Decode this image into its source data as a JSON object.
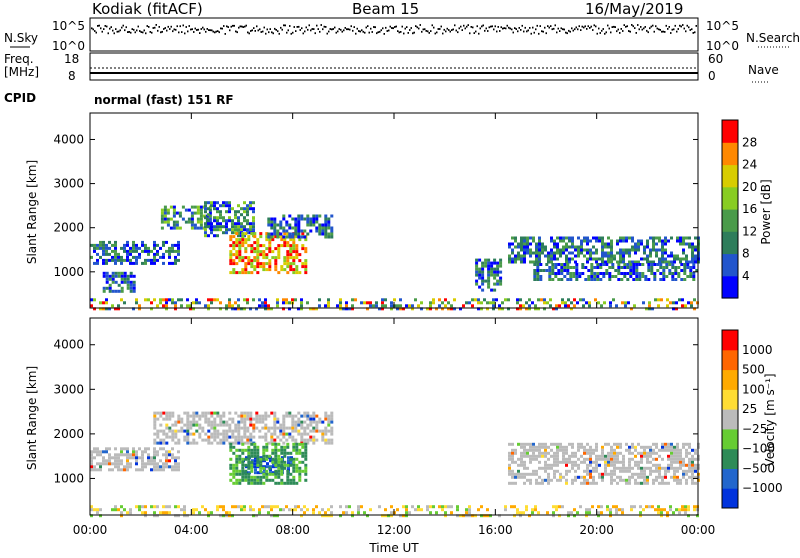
{
  "header": {
    "title": "Kodiak (fitACF)",
    "beam": "Beam 15",
    "date": "16/May/2019"
  },
  "status_panels": {
    "nsky_label": "N.Sky",
    "nsearch_label": "N.Search",
    "noise_ticks_left": [
      "10^5",
      "10^0"
    ],
    "noise_ticks_right": [
      "10^5",
      "10^0"
    ],
    "freq_label_1": "Freq.",
    "freq_label_2": "[MHz]",
    "freq_ticks": [
      "18",
      "8"
    ],
    "nave_label": "Nave",
    "nave_ticks": [
      "60",
      "0"
    ],
    "cpid_label": "CPID",
    "cpid_text": "normal (fast) 151 RF"
  },
  "chart_data": [
    {
      "type": "heatmap",
      "name": "power",
      "ylabel": "Slant Range [km]",
      "xlabel": "Time UT",
      "x_ticks": [
        "00:00",
        "04:00",
        "08:00",
        "12:00",
        "16:00",
        "20:00",
        "00:00"
      ],
      "y_ticks": [
        "4000",
        "3000",
        "2000",
        "1000"
      ],
      "ylim": [
        180,
        4600
      ],
      "xlim_hours": [
        0,
        24
      ],
      "colorbar_label": "Power [dB]",
      "colorbar_ticks": [
        "28",
        "24",
        "20",
        "16",
        "12",
        "8",
        "4"
      ],
      "colorbar_colors": [
        "#0000ff",
        "#2255cc",
        "#2e7d5b",
        "#4a9b4a",
        "#88cc22",
        "#d8cc00",
        "#ff8800",
        "#ff0000"
      ],
      "echo_regions": [
        {
          "t0": 0.0,
          "t1": 3.5,
          "r0": 1200,
          "r1": 1700,
          "level": "low"
        },
        {
          "t0": 0.5,
          "t1": 1.7,
          "r0": 550,
          "r1": 1000,
          "level": "low"
        },
        {
          "t0": 2.8,
          "t1": 4.8,
          "r0": 2000,
          "r1": 2500,
          "level": "mid"
        },
        {
          "t0": 4.5,
          "t1": 6.5,
          "r0": 1800,
          "r1": 2600,
          "level": "mid"
        },
        {
          "t0": 5.5,
          "t1": 8.5,
          "r0": 1000,
          "r1": 1900,
          "level": "high"
        },
        {
          "t0": 7.0,
          "t1": 9.5,
          "r0": 1800,
          "r1": 2300,
          "level": "low"
        },
        {
          "t0": 16.5,
          "t1": 24.0,
          "r0": 1200,
          "r1": 1800,
          "level": "low"
        },
        {
          "t0": 17.5,
          "t1": 24.0,
          "r0": 850,
          "r1": 1200,
          "level": "low"
        },
        {
          "t0": 15.2,
          "t1": 16.2,
          "r0": 600,
          "r1": 1300,
          "level": "low"
        },
        {
          "t0": 0.0,
          "t1": 24.0,
          "r0": 180,
          "r1": 400,
          "level": "ground"
        }
      ]
    },
    {
      "type": "heatmap",
      "name": "velocity",
      "ylabel": "Slant Range [km]",
      "xlabel": "Time UT",
      "x_ticks": [
        "00:00",
        "04:00",
        "08:00",
        "12:00",
        "16:00",
        "20:00",
        "00:00"
      ],
      "y_ticks": [
        "4000",
        "3000",
        "2000",
        "1000"
      ],
      "ylim": [
        180,
        4600
      ],
      "xlim_hours": [
        0,
        24
      ],
      "colorbar_label": "Velocity [m s⁻¹]",
      "colorbar_ticks": [
        "1000",
        "500",
        "100",
        "25",
        "−25",
        "−100",
        "−500",
        "−1000"
      ],
      "colorbar_colors": [
        "#0033dd",
        "#2266cc",
        "#2e8b57",
        "#66cc33",
        "#bbbbbb",
        "#ffdd33",
        "#ffaa00",
        "#ff6600",
        "#ff0000"
      ],
      "echo_regions": [
        {
          "t0": 0.0,
          "t1": 3.5,
          "r0": 1200,
          "r1": 1700,
          "level": "gray"
        },
        {
          "t0": 2.5,
          "t1": 9.5,
          "r0": 1800,
          "r1": 2500,
          "level": "gray"
        },
        {
          "t0": 6.0,
          "t1": 8.0,
          "r0": 1100,
          "r1": 1500,
          "level": "blue"
        },
        {
          "t0": 5.5,
          "t1": 8.5,
          "r0": 900,
          "r1": 1800,
          "level": "green"
        },
        {
          "t0": 16.5,
          "t1": 24.0,
          "r0": 900,
          "r1": 1800,
          "level": "gray"
        },
        {
          "t0": 0.0,
          "t1": 24.0,
          "r0": 180,
          "r1": 400,
          "level": "ground"
        }
      ]
    }
  ]
}
